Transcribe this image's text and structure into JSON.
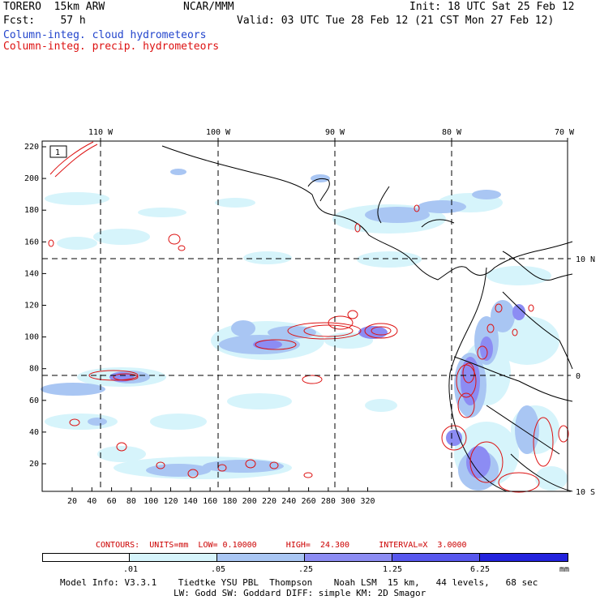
{
  "header": {
    "model": "TORERO  15km ARW",
    "center": "NCAR/MMM",
    "init": "Init: 18 UTC Sat 25 Feb 12",
    "fcst": "Fcst:    57 h",
    "valid": "Valid: 03 UTC Tue 28 Feb 12 (21 CST Mon 27 Feb 12)",
    "field1": "Column-integ. cloud hydrometeors",
    "field2": "Column-integ. precip. hydrometeors"
  },
  "colors": {
    "cloud_title": "#2244cc",
    "precip_title": "#dd1111",
    "shade_levels": [
      "#ffffff",
      "#d6f4fb",
      "#a9c6f3",
      "#8c8cf3",
      "#5757ee",
      "#2222dd"
    ],
    "contour": "#dd1111"
  },
  "map": {
    "lon_labels": [
      "110 W",
      "100 W",
      "90 W",
      "80 W",
      "70 W"
    ],
    "lat_labels": [
      "10 N",
      "0",
      "10 S"
    ],
    "y_ticks": [
      "220",
      "200",
      "180",
      "160",
      "140",
      "120",
      "100",
      "80",
      "60",
      "40",
      "20"
    ],
    "x_ticks": [
      "20",
      "40",
      "60",
      "80",
      "100",
      "120",
      "140",
      "160",
      "180",
      "200",
      "220",
      "240",
      "260",
      "280",
      "300",
      "320"
    ],
    "box_label": "1"
  },
  "contours_info": {
    "text": "CONTOURS:  UNITS=mm  LOW= 0.10000      HIGH=  24.300      INTERVAL=X  3.0000"
  },
  "colorbar": {
    "labels": [
      ".01",
      ".05",
      ".25",
      "1.25",
      "6.25"
    ],
    "unit": "mm"
  },
  "footer": {
    "line1": "Model Info: V3.3.1    Tiedtke YSU PBL  Thompson    Noah LSM  15 km,   44 levels,   68 sec",
    "line2": "LW: Godd SW: Goddard DIFF: simple KM: 2D Smagor"
  }
}
